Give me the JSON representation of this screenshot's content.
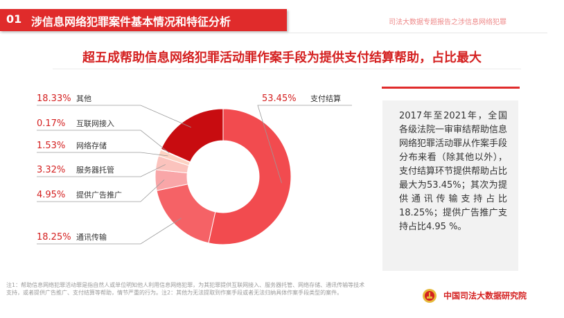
{
  "header": {
    "section_number": "01",
    "section_title": "涉信息网络犯罪案件基本情况和特征分析",
    "report_source": "司法大数据专题报告之涉信息网络犯罪"
  },
  "headline": "超五成帮助信息网络犯罪活动罪作案手段为提供支付结算帮助，占比最大",
  "info_text": "2017年至2021年，全国各级法院一审审结帮助信息网络犯罪活动罪从作案手段分布来看（除其他以外），支付结算环节提供帮助占比最大为53.45%；其次为提供通讯传输支持占比18.25%；提供广告推广支持占比4.95 %。",
  "footnote": "注1：帮助信息网络犯罪活动罪是指自然人或单位明知他人利用信息网络犯罪，为其犯罪提供互联网接入、服务器托管、网络存储、通讯传输等技术支持，或者提供广告推广、支付结算等帮助，情节严重的行为。注2：其他为无法提取到作案手段或者无法归纳具体作案手段类型的案件。",
  "logo": {
    "text": "中国司法大数据研究院"
  },
  "colors": {
    "accent": "#e02b2b",
    "dark_red": "#c80c10"
  },
  "chart_data": {
    "type": "pie",
    "donut": true,
    "slices": [
      {
        "label": "支付结算",
        "value": 53.45,
        "display": "53.45%",
        "color": "#f24b4f"
      },
      {
        "label": "通讯传输",
        "value": 18.25,
        "display": "18.25%",
        "color": "#f56266"
      },
      {
        "label": "提供广告推广",
        "value": 4.95,
        "display": "4.95%",
        "color": "#f9a6a8"
      },
      {
        "label": "服务器托管",
        "value": 3.32,
        "display": "3.32%",
        "color": "#fbc3bd"
      },
      {
        "label": "网络存储",
        "value": 1.53,
        "display": "1.53%",
        "color": "#fdd2c2"
      },
      {
        "label": "互联网接入",
        "value": 0.17,
        "display": "0.17%",
        "color": "#fde3d8"
      },
      {
        "label": "其他",
        "value": 18.33,
        "display": "18.33%",
        "color": "#c80c10"
      }
    ]
  }
}
